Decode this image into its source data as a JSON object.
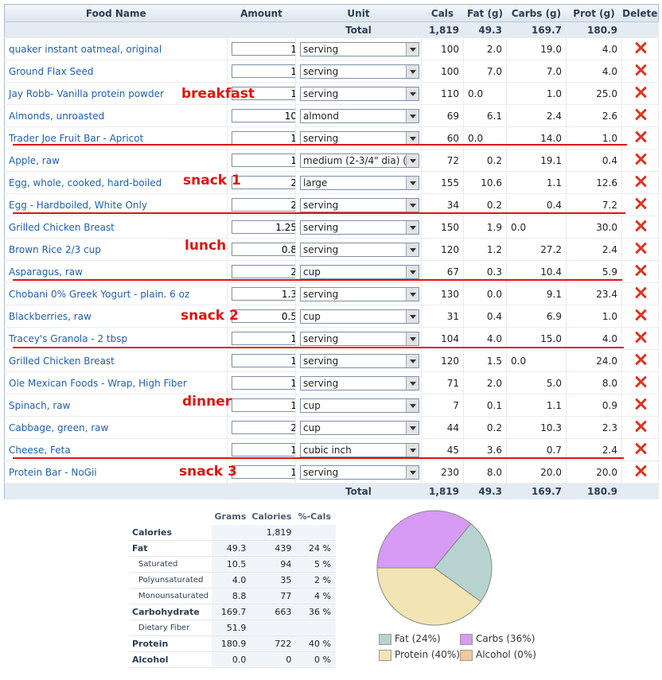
{
  "headers": {
    "food": "Food Name",
    "amount": "Amount",
    "unit": "Unit",
    "cals": "Cals",
    "fat": "Fat (g)",
    "carbs": "Carbs (g)",
    "prot": "Prot (g)",
    "delete": "Delete"
  },
  "totals": {
    "label": "Total",
    "cals": "1,819",
    "fat": "49.3",
    "carbs": "169.7",
    "prot": "180.9"
  },
  "rows": [
    {
      "name": "quaker instant oatmeal, original",
      "amount": "1",
      "unit": "serving",
      "cals": "100",
      "fat": "2.0",
      "carbs": "19.0",
      "prot": "4.0"
    },
    {
      "name": "Ground Flax Seed",
      "amount": "1",
      "unit": "serving",
      "cals": "100",
      "fat": "7.0",
      "carbs": "7.0",
      "prot": "4.0"
    },
    {
      "name": "Jay Robb- Vanilla protein powder",
      "amount": "1",
      "unit": "serving",
      "cals": "110",
      "fat": "0.0",
      "carbs": "1.0",
      "prot": "25.0"
    },
    {
      "name": "Almonds, unroasted",
      "amount": "10",
      "unit": "almond",
      "cals": "69",
      "fat": "6.1",
      "carbs": "2.4",
      "prot": "2.6"
    },
    {
      "name": "Trader Joe Fruit Bar - Apricot",
      "amount": "1",
      "unit": "serving",
      "cals": "60",
      "fat": "0.0",
      "carbs": "14.0",
      "prot": "1.0"
    },
    {
      "name": "Apple, raw",
      "amount": "1",
      "unit": "medium (2-3/4\" dia) (a",
      "cals": "72",
      "fat": "0.2",
      "carbs": "19.1",
      "prot": "0.4"
    },
    {
      "name": "Egg, whole, cooked, hard-boiled",
      "amount": "2",
      "unit": "large",
      "cals": "155",
      "fat": "10.6",
      "carbs": "1.1",
      "prot": "12.6"
    },
    {
      "name": "Egg - Hardboiled, White Only",
      "amount": "2",
      "unit": "serving",
      "cals": "34",
      "fat": "0.2",
      "carbs": "0.4",
      "prot": "7.2"
    },
    {
      "name": "Grilled Chicken Breast",
      "amount": "1.25",
      "unit": "serving",
      "cals": "150",
      "fat": "1.9",
      "carbs": "0.0",
      "prot": "30.0"
    },
    {
      "name": "Brown Rice 2/3 cup",
      "amount": "0.8",
      "unit": "serving",
      "cals": "120",
      "fat": "1.2",
      "carbs": "27.2",
      "prot": "2.4"
    },
    {
      "name": "Asparagus, raw",
      "amount": "2",
      "unit": "cup",
      "cals": "67",
      "fat": "0.3",
      "carbs": "10.4",
      "prot": "5.9"
    },
    {
      "name": "Chobani 0% Greek Yogurt - plain. 6 oz",
      "amount": "1.3",
      "unit": "serving",
      "cals": "130",
      "fat": "0.0",
      "carbs": "9.1",
      "prot": "23.4"
    },
    {
      "name": "Blackberries, raw",
      "amount": "0.5",
      "unit": "cup",
      "cals": "31",
      "fat": "0.4",
      "carbs": "6.9",
      "prot": "1.0"
    },
    {
      "name": "Tracey's Granola - 2 tbsp",
      "amount": "1",
      "unit": "serving",
      "cals": "104",
      "fat": "4.0",
      "carbs": "15.0",
      "prot": "4.0"
    },
    {
      "name": "Grilled Chicken Breast",
      "amount": "1",
      "unit": "serving",
      "cals": "120",
      "fat": "1.5",
      "carbs": "0.0",
      "prot": "24.0"
    },
    {
      "name": "Ole Mexican Foods - Wrap, High Fiber",
      "amount": "1",
      "unit": "serving",
      "cals": "71",
      "fat": "2.0",
      "carbs": "5.0",
      "prot": "8.0"
    },
    {
      "name": "Spinach, raw",
      "amount": "1",
      "unit": "cup",
      "cals": "7",
      "fat": "0.1",
      "carbs": "1.1",
      "prot": "0.9"
    },
    {
      "name": "Cabbage, green, raw",
      "amount": "2",
      "unit": "cup",
      "cals": "44",
      "fat": "0.2",
      "carbs": "10.3",
      "prot": "2.3"
    },
    {
      "name": "Cheese, Feta",
      "amount": "1",
      "unit": "cubic inch",
      "cals": "45",
      "fat": "3.6",
      "carbs": "0.7",
      "prot": "2.4"
    },
    {
      "name": "Protein Bar - NoGii",
      "amount": "1",
      "unit": "serving",
      "cals": "230",
      "fat": "8.0",
      "carbs": "20.0",
      "prot": "20.0"
    }
  ],
  "meal_labels": {
    "breakfast": "breakfast",
    "snack1": "snack 1",
    "lunch": "lunch",
    "snack2": "snack 2",
    "dinner": "dinner",
    "snack3": "snack 3"
  },
  "summary": {
    "headers": [
      "Grams",
      "Calories",
      "%-Cals"
    ],
    "rows": [
      {
        "label": "Calories",
        "grams": "",
        "cals": "1,819",
        "pct": "",
        "sub": false
      },
      {
        "label": "Fat",
        "grams": "49.3",
        "cals": "439",
        "pct": "24 %",
        "sub": false
      },
      {
        "label": "Saturated",
        "grams": "10.5",
        "cals": "94",
        "pct": "5 %",
        "sub": true
      },
      {
        "label": "Polyunsaturated",
        "grams": "4.0",
        "cals": "35",
        "pct": "2 %",
        "sub": true
      },
      {
        "label": "Monounsaturated",
        "grams": "8.8",
        "cals": "77",
        "pct": "4 %",
        "sub": true
      },
      {
        "label": "Carbohydrate",
        "grams": "169.7",
        "cals": "663",
        "pct": "36 %",
        "sub": false
      },
      {
        "label": "Dietary Fiber",
        "grams": "51.9",
        "cals": "",
        "pct": "",
        "sub": true
      },
      {
        "label": "Protein",
        "grams": "180.9",
        "cals": "722",
        "pct": "40 %",
        "sub": false
      },
      {
        "label": "Alcohol",
        "grams": "0.0",
        "cals": "0",
        "pct": "0 %",
        "sub": false
      }
    ]
  },
  "chart_data": {
    "type": "pie",
    "slices": [
      {
        "name": "Fat",
        "value": 24,
        "color": "#b6d3cf"
      },
      {
        "name": "Carbs",
        "value": 36,
        "color": "#d79af5"
      },
      {
        "name": "Protein",
        "value": 40,
        "color": "#f3e5b3"
      },
      {
        "name": "Alcohol",
        "value": 0,
        "color": "#f1c99b"
      }
    ],
    "legend": [
      "Fat (24%)",
      "Carbs (36%)",
      "Protein (40%)",
      "Alcohol (0%)"
    ]
  }
}
